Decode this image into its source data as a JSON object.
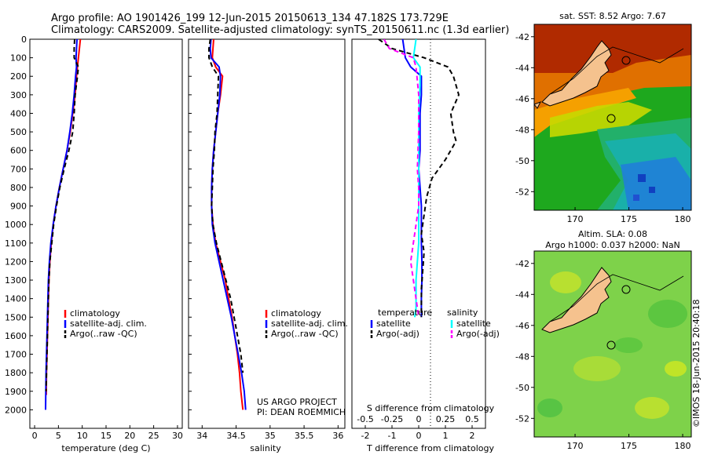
{
  "title_line1": "Argo profile: AO 1901426_199 12-Jun-2015 20150613_134 47.182S 173.729E",
  "title_line2": "Climatology: CARS2009. Satellite-adjusted climatology: synTS_20150611.nc (1.3d earlier)",
  "credit": "US ARGO PROJECT",
  "pi": "PI: DEAN ROEMMICH",
  "imos": "©IMOS 18-Jun-2015 20:40:18",
  "colors": {
    "clim": "#ff0000",
    "sat": "#0000ff",
    "argo": "#000000",
    "sat_s": "#00ffff",
    "argo_s": "#ff00ff",
    "land": "#f5c28e"
  },
  "chart_data": [
    {
      "type": "line",
      "id": "temperature",
      "xlabel": "temperature (deg C)",
      "ylabel": "",
      "xlim": [
        -1,
        31
      ],
      "ylim": [
        2100,
        0
      ],
      "xticks": [
        "0",
        "5",
        "10",
        "15",
        "20",
        "25",
        "30"
      ],
      "yticks": [
        "0",
        "100",
        "200",
        "300",
        "400",
        "500",
        "600",
        "700",
        "800",
        "900",
        "1000",
        "1100",
        "1200",
        "1300",
        "1400",
        "1500",
        "1600",
        "1700",
        "1800",
        "1900",
        "2000"
      ],
      "legend": [
        "climatology",
        "satellite-adj. clim.",
        "Argo(..raw -QC)"
      ],
      "series": [
        {
          "name": "climatology",
          "style": "clim",
          "x": [
            9.6,
            9.4,
            9.2,
            9.0,
            8.8,
            8.5,
            8.0,
            7.5,
            6.8,
            6.0,
            5.2,
            4.5,
            3.9,
            3.5,
            3.2,
            3.0,
            2.9,
            2.8,
            2.7,
            2.6,
            2.5,
            2.45
          ],
          "y": [
            0,
            50,
            100,
            150,
            200,
            300,
            400,
            500,
            600,
            700,
            800,
            900,
            1000,
            1100,
            1200,
            1300,
            1400,
            1500,
            1600,
            1700,
            1800,
            1920
          ]
        },
        {
          "name": "satellite-adj. clim.",
          "style": "sat",
          "x": [
            8.9,
            8.8,
            8.7,
            8.8,
            8.6,
            8.3,
            7.9,
            7.4,
            6.8,
            6.0,
            5.2,
            4.5,
            3.9,
            3.4,
            3.1,
            2.9,
            2.8,
            2.7,
            2.6,
            2.5,
            2.4,
            2.35,
            2.3
          ],
          "y": [
            0,
            50,
            100,
            150,
            200,
            300,
            400,
            500,
            600,
            700,
            800,
            900,
            1000,
            1100,
            1200,
            1300,
            1400,
            1500,
            1600,
            1700,
            1800,
            1900,
            2000
          ]
        },
        {
          "name": "Argo(..raw -QC)",
          "style": "argo",
          "x": [
            8.4,
            8.3,
            8.3,
            9.2,
            9.0,
            8.5,
            8.3,
            8.0,
            7.2,
            6.2,
            5.3,
            4.6,
            4.0,
            3.6,
            3.2,
            3.0,
            2.9,
            2.8,
            2.7,
            2.6,
            2.5,
            2.4
          ],
          "y": [
            0,
            50,
            100,
            150,
            200,
            300,
            400,
            500,
            600,
            700,
            800,
            900,
            1000,
            1100,
            1200,
            1300,
            1400,
            1500,
            1600,
            1700,
            1800,
            1900
          ]
        }
      ]
    },
    {
      "type": "line",
      "id": "salinity",
      "xlabel": "salinity",
      "ylabel": "",
      "xlim": [
        33.8,
        36.1
      ],
      "ylim": [
        2100,
        0
      ],
      "xticks": [
        "34",
        "34.5",
        "35",
        "35.5",
        "36"
      ],
      "legend": [
        "climatology",
        "satellite-adj. clim.",
        "Argo(..raw -QC)"
      ],
      "series": [
        {
          "name": "climatology",
          "style": "clim",
          "x": [
            34.17,
            34.16,
            34.15,
            34.2,
            34.3,
            34.27,
            34.23,
            34.2,
            34.17,
            34.15,
            34.14,
            34.14,
            34.16,
            34.2,
            34.27,
            34.34,
            34.39,
            34.44,
            34.48,
            34.52,
            34.55,
            34.57,
            34.6
          ],
          "y": [
            0,
            50,
            100,
            150,
            200,
            300,
            400,
            500,
            600,
            700,
            800,
            900,
            1000,
            1100,
            1200,
            1300,
            1400,
            1500,
            1600,
            1700,
            1800,
            1900,
            2000
          ]
        },
        {
          "name": "satellite-adj. clim.",
          "style": "sat",
          "x": [
            34.13,
            34.12,
            34.13,
            34.25,
            34.27,
            34.26,
            34.23,
            34.2,
            34.17,
            34.15,
            34.14,
            34.14,
            34.15,
            34.19,
            34.25,
            34.31,
            34.37,
            34.43,
            34.48,
            34.53,
            34.58,
            34.62,
            34.64
          ],
          "y": [
            0,
            50,
            100,
            150,
            200,
            300,
            400,
            500,
            600,
            700,
            800,
            900,
            1000,
            1100,
            1200,
            1300,
            1400,
            1500,
            1600,
            1700,
            1800,
            1900,
            2000
          ]
        },
        {
          "name": "Argo(..raw -QC)",
          "style": "argo",
          "x": [
            34.12,
            34.1,
            34.1,
            34.15,
            34.24,
            34.23,
            34.22,
            34.19,
            34.18,
            34.16,
            34.15,
            34.14,
            34.16,
            34.21,
            34.28,
            34.35,
            34.42,
            34.47,
            34.52,
            34.57,
            34.6
          ],
          "y": [
            0,
            50,
            100,
            150,
            200,
            300,
            400,
            500,
            600,
            700,
            800,
            900,
            1000,
            1100,
            1200,
            1300,
            1400,
            1500,
            1600,
            1700,
            1800
          ]
        }
      ]
    },
    {
      "type": "line",
      "id": "difference",
      "xlabel": "T difference from climatology",
      "xlabel2": "S difference from climatology",
      "xlim": [
        -2.5,
        2.5
      ],
      "ylim": [
        2100,
        0
      ],
      "xticks": [
        "-2",
        "-1",
        "0",
        "1",
        "2"
      ],
      "xticks_s": [
        "-0.5",
        "-0.25",
        "0",
        "0.25",
        "0.5"
      ],
      "legend_t_title": "temperature",
      "legend_s_title": "salinity",
      "legend": [
        "satellite",
        "Argo(-adj)",
        "satellite",
        "Argo(-adj)"
      ],
      "series": [
        {
          "name": "temperature satellite",
          "style": "sat",
          "x": [
            -0.6,
            -0.5,
            -0.3,
            0.1,
            0.1,
            0.05,
            0.05,
            0.05,
            0.0,
            0.05,
            0.1,
            0.1,
            0.1,
            0.12,
            0.12,
            0.1,
            0.1,
            0.1
          ],
          "y": [
            0,
            100,
            150,
            200,
            300,
            400,
            500,
            600,
            700,
            800,
            900,
            1000,
            1100,
            1200,
            1300,
            1400,
            1450,
            1500
          ]
        },
        {
          "name": "temperature Argo(-adj)",
          "style": "argo",
          "x": [
            -1.5,
            -1.0,
            0.2,
            1.1,
            1.3,
            1.4,
            1.5,
            1.2,
            1.3,
            1.4,
            1.0,
            0.5,
            0.3,
            0.2,
            0.1,
            0.2,
            0.15,
            0.1,
            0.1,
            0.1
          ],
          "y": [
            0,
            50,
            100,
            150,
            200,
            250,
            300,
            400,
            500,
            550,
            650,
            750,
            850,
            950,
            1050,
            1150,
            1250,
            1350,
            1450,
            1500
          ]
        },
        {
          "name": "salinity satellite",
          "style": "sat_s",
          "x": [
            -0.1,
            -0.2,
            0.05,
            0.05,
            0.0,
            0.0,
            0.0,
            0.0,
            0.0,
            -0.05,
            -0.1,
            -0.1,
            -0.1,
            -0.1,
            -0.15
          ],
          "y": [
            0,
            100,
            150,
            250,
            400,
            600,
            800,
            950,
            1100,
            1200,
            1300,
            1350,
            1400,
            1450,
            1500
          ]
        },
        {
          "name": "salinity Argo(-adj)",
          "style": "argo_s",
          "x": [
            -1.3,
            -1.1,
            -0.2,
            -0.1,
            0.0,
            0.0,
            -0.05,
            0.0,
            0.0,
            -0.1,
            -0.2,
            -0.3,
            -0.2,
            -0.1,
            0.0
          ],
          "y": [
            0,
            50,
            100,
            150,
            300,
            500,
            700,
            800,
            900,
            1000,
            1100,
            1200,
            1300,
            1400,
            1500
          ]
        }
      ]
    },
    {
      "type": "heatmap",
      "id": "sst_map",
      "title": "sat. SST: 8.52 Argo: 7.67",
      "xticks": [
        "170",
        "175",
        "180"
      ],
      "yticks": [
        "-42",
        "-44",
        "-46",
        "-48",
        "-50",
        "-52"
      ]
    },
    {
      "type": "heatmap",
      "id": "sla_map",
      "title": "Altim. SLA: 0.08",
      "title2": "Argo h1000: 0.037 h2000: NaN",
      "xticks": [
        "170",
        "175",
        "180"
      ],
      "yticks": [
        "-42",
        "-44",
        "-46",
        "-48",
        "-50",
        "-52"
      ]
    }
  ]
}
